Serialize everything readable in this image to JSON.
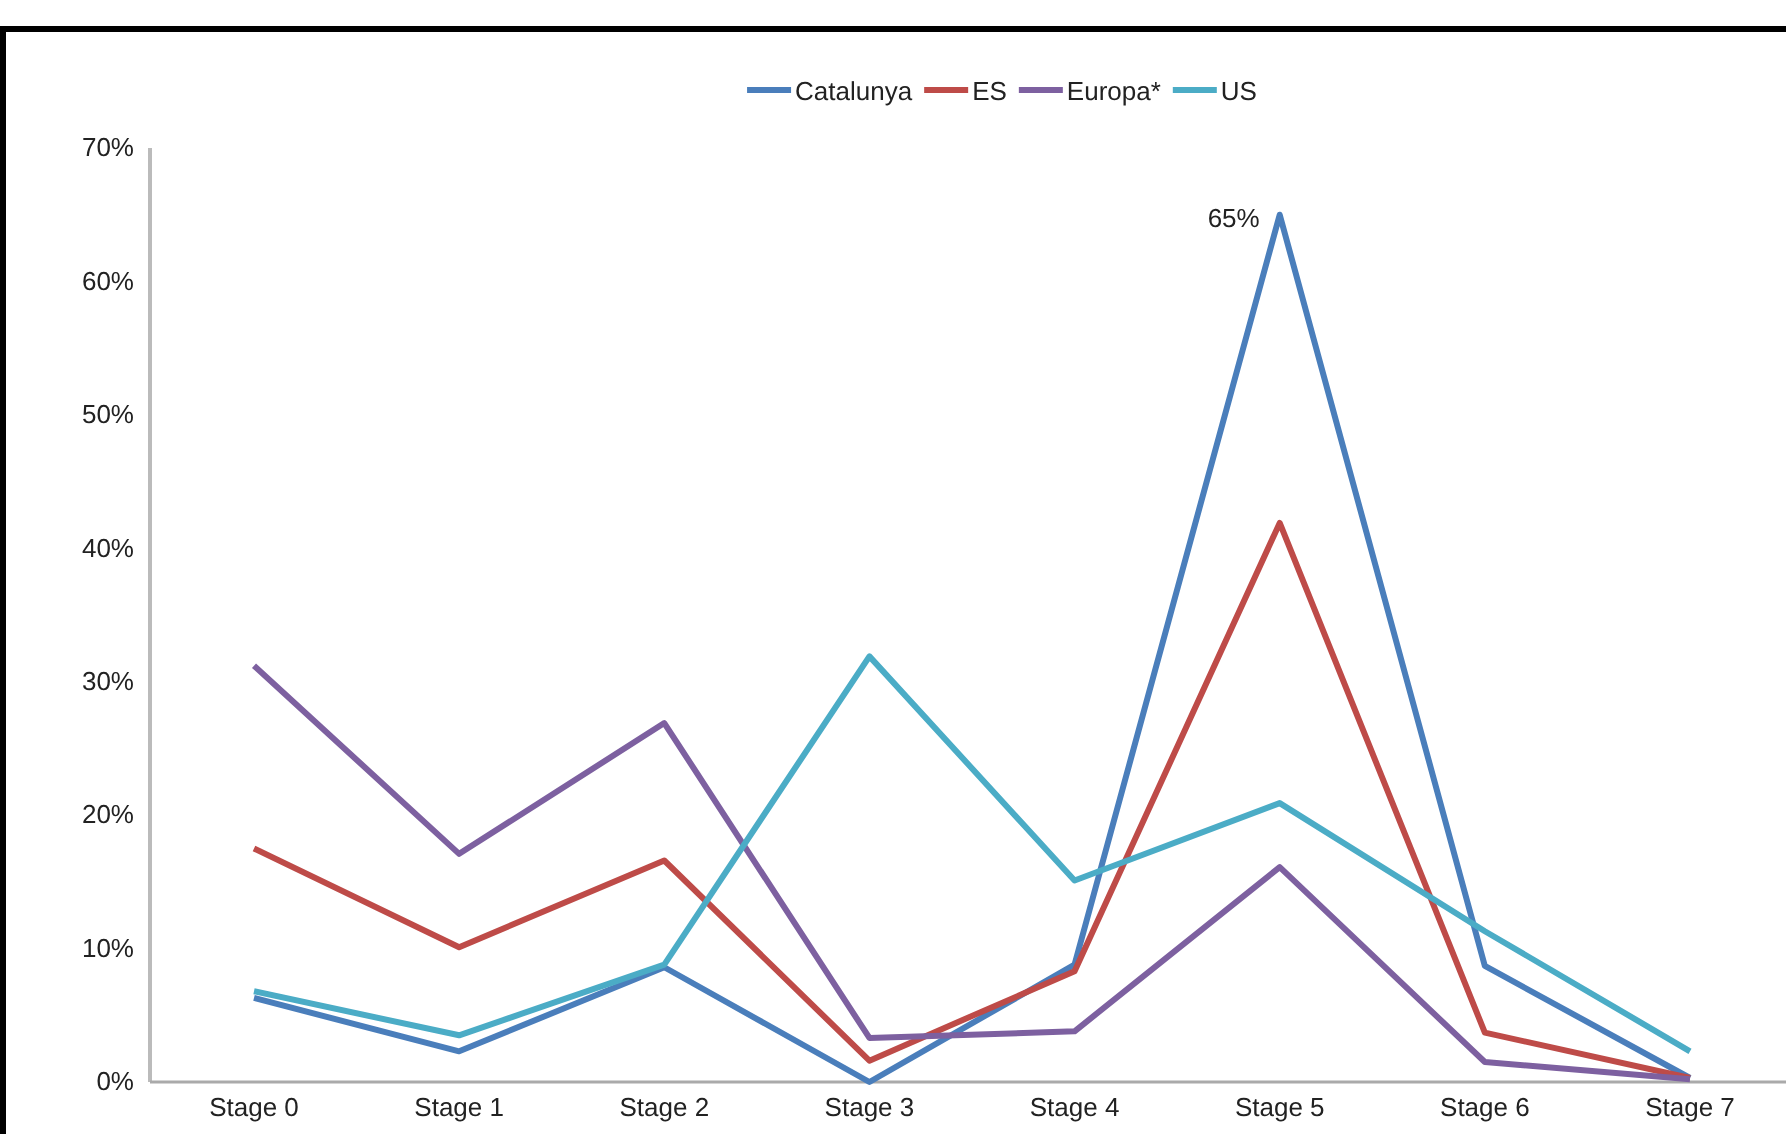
{
  "chart_data": {
    "type": "line",
    "categories": [
      "Stage 0",
      "Stage 1",
      "Stage 2",
      "Stage 3",
      "Stage 4",
      "Stage 5",
      "Stage 6",
      "Stage 7"
    ],
    "series": [
      {
        "name": "Catalunya",
        "color": "#4a7ebb",
        "values": [
          6.3,
          2.3,
          8.6,
          0,
          8.8,
          65,
          8.7,
          0.3
        ],
        "value_labels": [
          null,
          null,
          null,
          null,
          null,
          "65%",
          null,
          null
        ]
      },
      {
        "name": "ES",
        "color": "#be4b48",
        "values": [
          17.5,
          10.1,
          16.6,
          1.6,
          8.3,
          41.9,
          3.7,
          0.3
        ]
      },
      {
        "name": "Europa*",
        "color": "#7d60a0",
        "values": [
          31.2,
          17.1,
          26.9,
          3.3,
          3.8,
          16.1,
          1.5,
          0.2
        ]
      },
      {
        "name": "US",
        "color": "#4bacc6",
        "values": [
          6.8,
          3.5,
          8.8,
          31.9,
          15.1,
          20.9,
          11.3,
          2.3
        ]
      }
    ],
    "ylim": [
      0,
      70
    ],
    "yticks": [
      {
        "value": 0,
        "label": "0%"
      },
      {
        "value": 10,
        "label": "10%"
      },
      {
        "value": 20,
        "label": "20%"
      },
      {
        "value": 30,
        "label": "30%"
      },
      {
        "value": 40,
        "label": "40%"
      },
      {
        "value": 50,
        "label": "50%"
      },
      {
        "value": 60,
        "label": "60%"
      },
      {
        "value": 70,
        "label": "70%"
      }
    ],
    "legend": "top",
    "marker": "none",
    "line_style": "solid"
  }
}
